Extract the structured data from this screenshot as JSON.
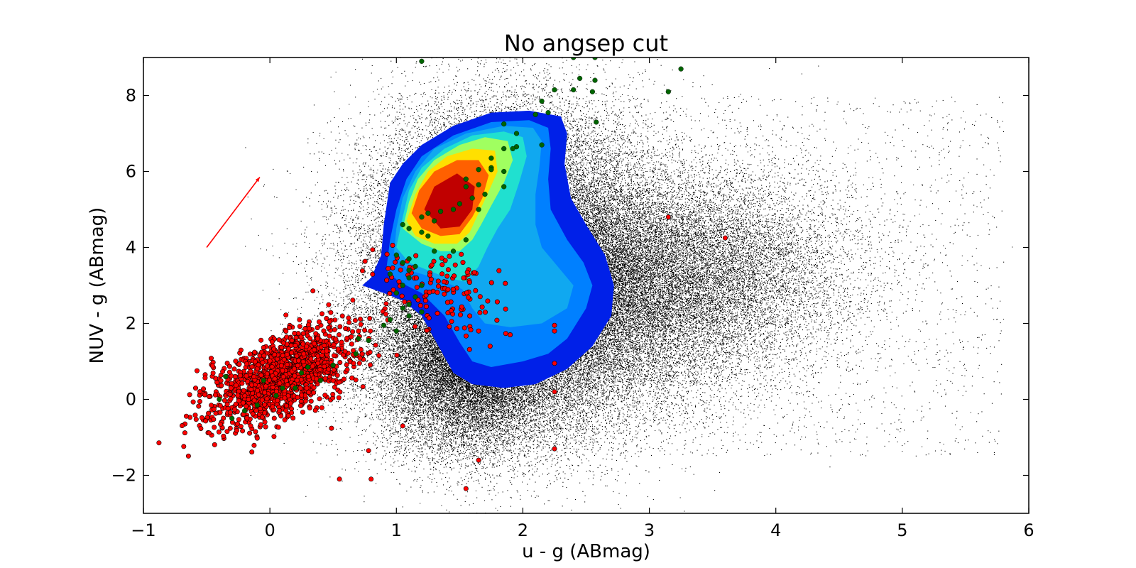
{
  "chart_data": {
    "type": "scatter",
    "title": "No angsep cut",
    "xlabel": "u - g (ABmag)",
    "ylabel": "NUV - g (ABmag)",
    "xlim": [
      -1,
      6
    ],
    "ylim": [
      -3,
      9
    ],
    "xticks": [
      -1,
      0,
      1,
      2,
      3,
      4,
      5,
      6
    ],
    "yticks": [
      -2,
      0,
      2,
      4,
      6,
      8
    ],
    "xtick_labels": [
      "−1",
      "0",
      "1",
      "2",
      "3",
      "4",
      "5",
      "6"
    ],
    "ytick_labels": [
      "−2",
      "0",
      "2",
      "4",
      "6",
      "8"
    ],
    "grid": false,
    "legend": "none",
    "colors": {
      "background_points": "#000000",
      "red_points": "#ff0000",
      "green_points": "#006400",
      "arrow": "#ff0000"
    },
    "arrow": {
      "from": [
        -0.5,
        4.0
      ],
      "to": [
        -0.08,
        5.85
      ]
    },
    "density_contours": {
      "colormap": "jet",
      "levels": [
        {
          "color": "#0020e8",
          "polygon": [
            [
              0.73,
              3.0
            ],
            [
              0.8,
              3.2
            ],
            [
              0.88,
              3.8
            ],
            [
              0.9,
              4.6
            ],
            [
              0.95,
              5.7
            ],
            [
              1.05,
              6.2
            ],
            [
              1.2,
              6.7
            ],
            [
              1.45,
              7.2
            ],
            [
              1.75,
              7.55
            ],
            [
              2.05,
              7.6
            ],
            [
              2.3,
              7.45
            ],
            [
              2.35,
              7.0
            ],
            [
              2.33,
              6.2
            ],
            [
              2.38,
              5.3
            ],
            [
              2.5,
              4.6
            ],
            [
              2.65,
              3.8
            ],
            [
              2.72,
              3.0
            ],
            [
              2.7,
              2.2
            ],
            [
              2.55,
              1.4
            ],
            [
              2.35,
              0.8
            ],
            [
              2.1,
              0.4
            ],
            [
              1.85,
              0.3
            ],
            [
              1.6,
              0.4
            ],
            [
              1.45,
              0.7
            ],
            [
              1.35,
              1.3
            ],
            [
              1.2,
              2.2
            ],
            [
              1.05,
              2.6
            ],
            [
              0.9,
              2.8
            ]
          ]
        },
        {
          "color": "#0080ff",
          "polygon": [
            [
              0.92,
              3.4
            ],
            [
              0.95,
              4.2
            ],
            [
              1.0,
              5.0
            ],
            [
              1.08,
              5.8
            ],
            [
              1.2,
              6.4
            ],
            [
              1.45,
              6.95
            ],
            [
              1.75,
              7.3
            ],
            [
              2.05,
              7.35
            ],
            [
              2.2,
              7.15
            ],
            [
              2.22,
              6.6
            ],
            [
              2.2,
              5.8
            ],
            [
              2.22,
              5.0
            ],
            [
              2.35,
              4.2
            ],
            [
              2.48,
              3.6
            ],
            [
              2.55,
              3.0
            ],
            [
              2.5,
              2.4
            ],
            [
              2.35,
              1.6
            ],
            [
              2.2,
              1.2
            ],
            [
              2.0,
              1.0
            ],
            [
              1.75,
              0.85
            ],
            [
              1.6,
              1.0
            ],
            [
              1.5,
              1.5
            ],
            [
              1.38,
              2.2
            ],
            [
              1.2,
              2.8
            ],
            [
              1.02,
              3.1
            ]
          ]
        },
        {
          "color": "#10a8f0",
          "polygon": [
            [
              0.98,
              3.8
            ],
            [
              1.0,
              4.5
            ],
            [
              1.05,
              5.3
            ],
            [
              1.15,
              6.0
            ],
            [
              1.3,
              6.6
            ],
            [
              1.55,
              7.0
            ],
            [
              1.85,
              7.2
            ],
            [
              2.08,
              7.15
            ],
            [
              2.15,
              6.8
            ],
            [
              2.13,
              6.1
            ],
            [
              2.1,
              5.4
            ],
            [
              2.1,
              4.6
            ],
            [
              2.15,
              4.0
            ],
            [
              2.3,
              3.4
            ],
            [
              2.4,
              3.0
            ],
            [
              2.35,
              2.4
            ],
            [
              2.15,
              2.0
            ],
            [
              1.9,
              1.9
            ],
            [
              1.7,
              2.0
            ],
            [
              1.6,
              2.4
            ],
            [
              1.52,
              2.9
            ],
            [
              1.3,
              3.2
            ],
            [
              1.1,
              3.4
            ]
          ]
        },
        {
          "color": "#20e0d0",
          "polygon": [
            [
              1.0,
              4.0
            ],
            [
              1.05,
              4.8
            ],
            [
              1.1,
              5.5
            ],
            [
              1.2,
              6.1
            ],
            [
              1.38,
              6.6
            ],
            [
              1.6,
              6.95
            ],
            [
              1.85,
              7.05
            ],
            [
              2.0,
              6.9
            ],
            [
              2.03,
              6.4
            ],
            [
              1.97,
              5.7
            ],
            [
              1.9,
              5.0
            ],
            [
              1.8,
              4.5
            ],
            [
              1.72,
              4.0
            ],
            [
              1.65,
              3.5
            ],
            [
              1.55,
              3.1
            ],
            [
              1.4,
              3.2
            ],
            [
              1.25,
              3.4
            ],
            [
              1.1,
              3.6
            ]
          ]
        },
        {
          "color": "#a0ff60",
          "polygon": [
            [
              1.05,
              4.5
            ],
            [
              1.1,
              5.2
            ],
            [
              1.17,
              5.8
            ],
            [
              1.3,
              6.3
            ],
            [
              1.5,
              6.7
            ],
            [
              1.7,
              6.9
            ],
            [
              1.88,
              6.8
            ],
            [
              1.92,
              6.3
            ],
            [
              1.85,
              5.7
            ],
            [
              1.75,
              5.1
            ],
            [
              1.67,
              4.6
            ],
            [
              1.6,
              4.2
            ],
            [
              1.5,
              3.9
            ],
            [
              1.35,
              3.9
            ],
            [
              1.2,
              4.1
            ]
          ]
        },
        {
          "color": "#ffe000",
          "polygon": [
            [
              1.08,
              4.7
            ],
            [
              1.15,
              5.4
            ],
            [
              1.25,
              6.0
            ],
            [
              1.4,
              6.4
            ],
            [
              1.6,
              6.6
            ],
            [
              1.78,
              6.55
            ],
            [
              1.8,
              6.0
            ],
            [
              1.72,
              5.4
            ],
            [
              1.65,
              4.9
            ],
            [
              1.58,
              4.4
            ],
            [
              1.48,
              4.1
            ],
            [
              1.3,
              4.1
            ],
            [
              1.15,
              4.3
            ]
          ]
        },
        {
          "color": "#ff6000",
          "polygon": [
            [
              1.12,
              4.9
            ],
            [
              1.18,
              5.5
            ],
            [
              1.3,
              6.0
            ],
            [
              1.48,
              6.3
            ],
            [
              1.65,
              6.3
            ],
            [
              1.73,
              5.9
            ],
            [
              1.68,
              5.3
            ],
            [
              1.6,
              4.8
            ],
            [
              1.5,
              4.35
            ],
            [
              1.35,
              4.3
            ],
            [
              1.2,
              4.5
            ]
          ]
        },
        {
          "color": "#c00000",
          "polygon": [
            [
              1.22,
              5.0
            ],
            [
              1.3,
              5.6
            ],
            [
              1.48,
              5.95
            ],
            [
              1.62,
              5.6
            ],
            [
              1.6,
              5.0
            ],
            [
              1.5,
              4.55
            ],
            [
              1.35,
              4.5
            ]
          ]
        }
      ]
    },
    "red_clusters": [
      {
        "center": [
          0.1,
          0.6
        ],
        "spread": [
          0.28,
          0.65
        ],
        "count": 1400,
        "corr": 0.6
      },
      {
        "center": [
          1.3,
          3.0
        ],
        "spread": [
          0.25,
          0.5
        ],
        "count": 90,
        "corr": 0.0
      },
      {
        "center": [
          1.5,
          2.4
        ],
        "spread": [
          0.2,
          0.6
        ],
        "count": 40,
        "corr": 0.0
      }
    ],
    "red_outliers": [
      [
        1.65,
        -1.6
      ],
      [
        2.25,
        -1.3
      ],
      [
        1.55,
        -2.35
      ],
      [
        2.25,
        0.2
      ],
      [
        2.25,
        0.95
      ],
      [
        3.15,
        4.8
      ],
      [
        3.6,
        4.25
      ],
      [
        0.8,
        -2.1
      ],
      [
        0.55,
        -2.1
      ],
      [
        1.05,
        -0.7
      ],
      [
        2.25,
        1.8
      ],
      [
        2.25,
        1.95
      ],
      [
        1.9,
        1.7
      ],
      [
        1.65,
        1.8
      ],
      [
        0.78,
        -1.35
      ]
    ],
    "green_points": [
      [
        1.2,
        8.9
      ],
      [
        2.4,
        9.0
      ],
      [
        2.57,
        9.0
      ],
      [
        2.45,
        8.45
      ],
      [
        2.57,
        8.4
      ],
      [
        2.55,
        8.1
      ],
      [
        2.4,
        8.15
      ],
      [
        2.25,
        8.15
      ],
      [
        3.25,
        8.7
      ],
      [
        3.15,
        8.1
      ],
      [
        2.15,
        7.85
      ],
      [
        2.1,
        7.5
      ],
      [
        2.2,
        7.55
      ],
      [
        2.58,
        7.3
      ],
      [
        1.85,
        7.25
      ],
      [
        1.95,
        7.0
      ],
      [
        2.15,
        6.7
      ],
      [
        1.95,
        6.65
      ],
      [
        1.92,
        6.6
      ],
      [
        1.85,
        6.6
      ],
      [
        1.75,
        6.35
      ],
      [
        1.75,
        6.1
      ],
      [
        1.75,
        6.05
      ],
      [
        1.65,
        6.05
      ],
      [
        1.85,
        6.0
      ],
      [
        1.55,
        5.8
      ],
      [
        1.55,
        5.6
      ],
      [
        1.65,
        5.65
      ],
      [
        1.85,
        5.6
      ],
      [
        1.6,
        5.3
      ],
      [
        1.7,
        5.4
      ],
      [
        1.5,
        5.15
      ],
      [
        1.45,
        5.0
      ],
      [
        1.35,
        4.95
      ],
      [
        1.25,
        4.9
      ],
      [
        1.65,
        5.0
      ],
      [
        1.2,
        4.8
      ],
      [
        1.1,
        4.5
      ],
      [
        1.2,
        4.4
      ],
      [
        1.05,
        4.6
      ],
      [
        1.3,
        4.7
      ],
      [
        1.25,
        4.3
      ],
      [
        1.55,
        4.2
      ],
      [
        1.3,
        3.9
      ],
      [
        1.45,
        3.9
      ],
      [
        1.0,
        3.8
      ],
      [
        1.1,
        3.7
      ],
      [
        1.05,
        3.6
      ],
      [
        1.15,
        3.5
      ],
      [
        1.1,
        3.4
      ],
      [
        0.95,
        3.3
      ],
      [
        1.1,
        3.2
      ],
      [
        1.05,
        3.0
      ],
      [
        1.2,
        3.0
      ],
      [
        1.0,
        2.8
      ],
      [
        1.15,
        2.7
      ],
      [
        1.1,
        2.5
      ],
      [
        1.05,
        2.4
      ],
      [
        1.2,
        2.3
      ],
      [
        1.1,
        2.2
      ],
      [
        0.95,
        2.1
      ],
      [
        0.9,
        1.95
      ],
      [
        1.0,
        1.8
      ],
      [
        0.7,
        1.6
      ],
      [
        0.78,
        1.55
      ],
      [
        0.68,
        1.2
      ],
      [
        0.5,
        0.9
      ],
      [
        0.25,
        0.7
      ],
      [
        0.4,
        0.5
      ],
      [
        0.1,
        0.3
      ],
      [
        -0.05,
        0.5
      ],
      [
        0.2,
        0.3
      ],
      [
        -0.35,
        0.6
      ],
      [
        -0.4,
        0.0
      ],
      [
        -0.3,
        -0.5
      ],
      [
        -0.2,
        -0.3
      ],
      [
        0.05,
        0.1
      ],
      [
        0.3,
        0.85
      ],
      [
        -0.1,
        -0.15
      ]
    ],
    "black_field": {
      "count": 90000
    }
  }
}
